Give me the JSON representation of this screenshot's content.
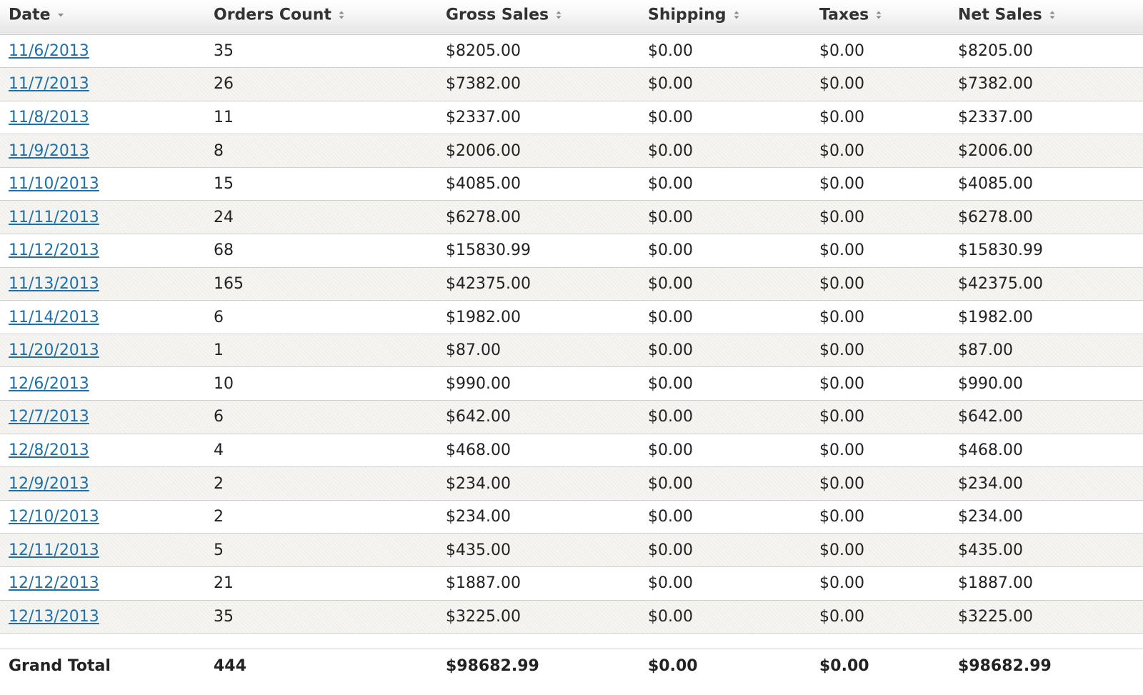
{
  "table": {
    "headers": {
      "date": "Date",
      "orders": "Orders Count",
      "gross": "Gross Sales",
      "shipping": "Shipping",
      "taxes": "Taxes",
      "net": "Net Sales"
    },
    "sort": {
      "column": "date",
      "direction": "descending-indicator"
    },
    "rows": [
      {
        "date": "11/6/2013",
        "orders": "35",
        "gross": "$8205.00",
        "shipping": "$0.00",
        "taxes": "$0.00",
        "net": "$8205.00"
      },
      {
        "date": "11/7/2013",
        "orders": "26",
        "gross": "$7382.00",
        "shipping": "$0.00",
        "taxes": "$0.00",
        "net": "$7382.00"
      },
      {
        "date": "11/8/2013",
        "orders": "11",
        "gross": "$2337.00",
        "shipping": "$0.00",
        "taxes": "$0.00",
        "net": "$2337.00"
      },
      {
        "date": "11/9/2013",
        "orders": "8",
        "gross": "$2006.00",
        "shipping": "$0.00",
        "taxes": "$0.00",
        "net": "$2006.00"
      },
      {
        "date": "11/10/2013",
        "orders": "15",
        "gross": "$4085.00",
        "shipping": "$0.00",
        "taxes": "$0.00",
        "net": "$4085.00"
      },
      {
        "date": "11/11/2013",
        "orders": "24",
        "gross": "$6278.00",
        "shipping": "$0.00",
        "taxes": "$0.00",
        "net": "$6278.00"
      },
      {
        "date": "11/12/2013",
        "orders": "68",
        "gross": "$15830.99",
        "shipping": "$0.00",
        "taxes": "$0.00",
        "net": "$15830.99"
      },
      {
        "date": "11/13/2013",
        "orders": "165",
        "gross": "$42375.00",
        "shipping": "$0.00",
        "taxes": "$0.00",
        "net": "$42375.00"
      },
      {
        "date": "11/14/2013",
        "orders": "6",
        "gross": "$1982.00",
        "shipping": "$0.00",
        "taxes": "$0.00",
        "net": "$1982.00"
      },
      {
        "date": "11/20/2013",
        "orders": "1",
        "gross": "$87.00",
        "shipping": "$0.00",
        "taxes": "$0.00",
        "net": "$87.00"
      },
      {
        "date": "12/6/2013",
        "orders": "10",
        "gross": "$990.00",
        "shipping": "$0.00",
        "taxes": "$0.00",
        "net": "$990.00"
      },
      {
        "date": "12/7/2013",
        "orders": "6",
        "gross": "$642.00",
        "shipping": "$0.00",
        "taxes": "$0.00",
        "net": "$642.00"
      },
      {
        "date": "12/8/2013",
        "orders": "4",
        "gross": "$468.00",
        "shipping": "$0.00",
        "taxes": "$0.00",
        "net": "$468.00"
      },
      {
        "date": "12/9/2013",
        "orders": "2",
        "gross": "$234.00",
        "shipping": "$0.00",
        "taxes": "$0.00",
        "net": "$234.00"
      },
      {
        "date": "12/10/2013",
        "orders": "2",
        "gross": "$234.00",
        "shipping": "$0.00",
        "taxes": "$0.00",
        "net": "$234.00"
      },
      {
        "date": "12/11/2013",
        "orders": "5",
        "gross": "$435.00",
        "shipping": "$0.00",
        "taxes": "$0.00",
        "net": "$435.00"
      },
      {
        "date": "12/12/2013",
        "orders": "21",
        "gross": "$1887.00",
        "shipping": "$0.00",
        "taxes": "$0.00",
        "net": "$1887.00"
      },
      {
        "date": "12/13/2013",
        "orders": "35",
        "gross": "$3225.00",
        "shipping": "$0.00",
        "taxes": "$0.00",
        "net": "$3225.00"
      }
    ],
    "total": {
      "label": "Grand Total",
      "orders": "444",
      "gross": "$98682.99",
      "shipping": "$0.00",
      "taxes": "$0.00",
      "net": "$98682.99"
    }
  },
  "icons": {
    "sort_active": "caret-down-icon",
    "sort_inactive": "sort-updown-icon"
  },
  "colors": {
    "link": "#1f6fa8",
    "text": "#222222",
    "row_alt": "#f6f5f2",
    "row_border": "#cfcfcf",
    "header_gradient_end": "#e6e6e6"
  }
}
